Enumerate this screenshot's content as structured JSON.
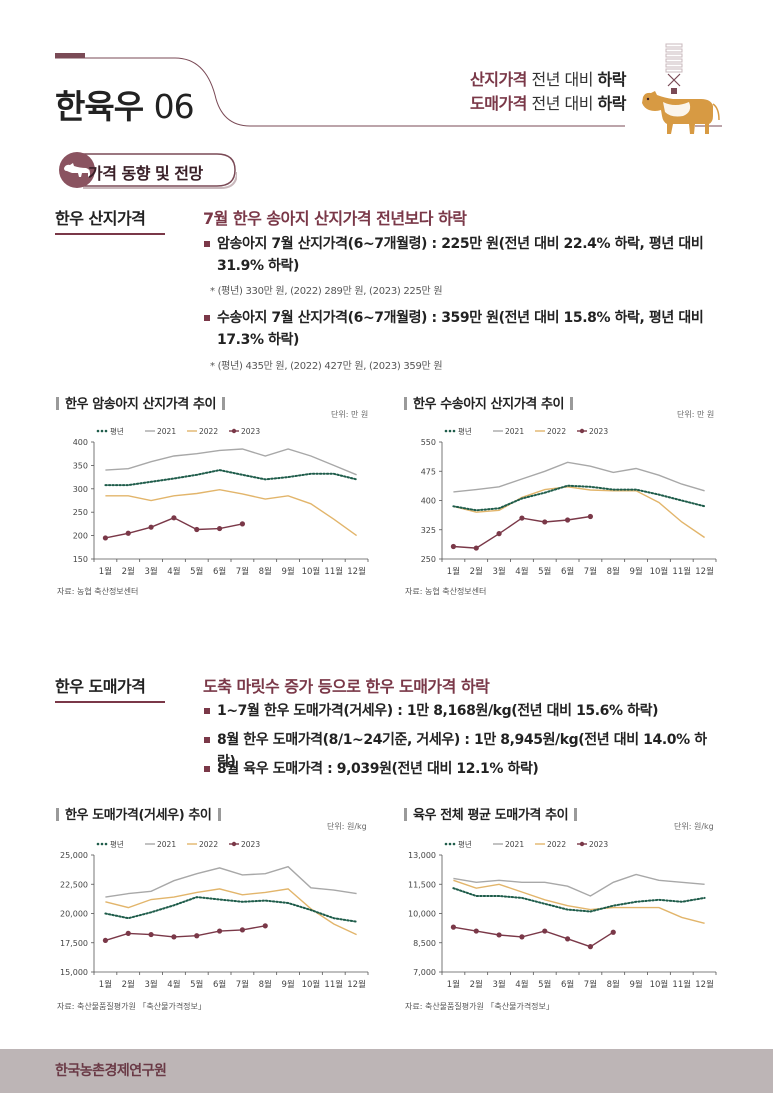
{
  "header": {
    "title_main": "한육우",
    "title_num": "06",
    "line1": {
      "accent": "산지가격",
      "plain": " 전년 대비 ",
      "strong": "하락"
    },
    "line2": {
      "accent": "도매가격",
      "plain": " 전년 대비 ",
      "strong": "하락"
    }
  },
  "badge": {
    "label": "가격 동향 및 전망"
  },
  "section1": {
    "title": "한우 산지가격",
    "headline": "7월 한우 송아지 산지가격 전년보다 하락",
    "bullet1": "암송아지 7월 산지가격(6~7개월령) : 225만 원(전년 대비 22.4% 하락, 평년 대비 31.9% 하락)",
    "note1": "* (평년) 330만 원, (2022) 289만 원, (2023) 225만 원",
    "bullet2": "수송아지 7월 산지가격(6~7개월령) : 359만 원(전년 대비 15.8% 하락, 평년 대비 17.3% 하락)",
    "note2": "* (평년) 435만 원, (2022) 427만 원, (2023) 359만 원"
  },
  "section2": {
    "title": "한우 도매가격",
    "headline": "도축 마릿수 증가 등으로 한우 도매가격 하락",
    "bullet1": "1~7월 한우 도매가격(거세우) : 1만 8,168원/kg(전년 대비 15.6% 하락)",
    "bullet2": "8월 한우 도매가격(8/1~24기준, 거세우) : 1만 8,945원/kg(전년 대비 14.0% 하락)",
    "bullet3": "8월 육우 도매가격 : 9,039원(전년 대비 12.1% 하락)"
  },
  "footer": {
    "label": "한국농촌경제연구원"
  },
  "colors": {
    "avg": "#1e5c4a",
    "y2021": "#a8a8a8",
    "y2022": "#e2b56b",
    "y2023": "#7a3848",
    "accent": "#7a3848"
  },
  "chart_data": [
    {
      "type": "line",
      "title": "한우 암송아지 산지가격 추이",
      "unit": "단위: 만 원",
      "source": "자료: 농협 축산정보센터",
      "categories": [
        "1월",
        "2월",
        "3월",
        "4월",
        "5월",
        "6월",
        "7월",
        "8월",
        "9월",
        "10월",
        "11월",
        "12월"
      ],
      "ylim": [
        150,
        400
      ],
      "yticks": [
        150,
        200,
        250,
        300,
        350,
        400
      ],
      "legend_position": "top-left",
      "series": [
        {
          "name": "평년",
          "values": [
            308,
            308,
            315,
            322,
            330,
            340,
            330,
            320,
            325,
            332,
            332,
            320
          ]
        },
        {
          "name": "2021",
          "values": [
            340,
            343,
            358,
            370,
            375,
            382,
            385,
            370,
            385,
            370,
            350,
            330
          ]
        },
        {
          "name": "2022",
          "values": [
            285,
            285,
            275,
            285,
            290,
            298,
            289,
            278,
            285,
            268,
            235,
            200
          ]
        },
        {
          "name": "2023",
          "values": [
            195,
            205,
            218,
            238,
            213,
            215,
            225,
            null,
            null,
            null,
            null,
            null
          ]
        }
      ]
    },
    {
      "type": "line",
      "title": "한우 수송아지 산지가격 추이",
      "unit": "단위: 만 원",
      "source": "자료: 농협 축산정보센터",
      "categories": [
        "1월",
        "2월",
        "3월",
        "4월",
        "5월",
        "6월",
        "7월",
        "8월",
        "9월",
        "10월",
        "11월",
        "12월"
      ],
      "ylim": [
        250,
        550
      ],
      "yticks": [
        250,
        325,
        400,
        475,
        550
      ],
      "legend_position": "top-left",
      "series": [
        {
          "name": "평년",
          "values": [
            385,
            375,
            380,
            405,
            420,
            438,
            435,
            428,
            428,
            415,
            400,
            385
          ]
        },
        {
          "name": "2021",
          "values": [
            422,
            428,
            435,
            455,
            475,
            498,
            488,
            472,
            482,
            465,
            442,
            425
          ]
        },
        {
          "name": "2022",
          "values": [
            385,
            370,
            375,
            408,
            428,
            435,
            427,
            425,
            425,
            395,
            345,
            305
          ]
        },
        {
          "name": "2023",
          "values": [
            282,
            278,
            315,
            355,
            345,
            350,
            359,
            null,
            null,
            null,
            null,
            null
          ]
        }
      ]
    },
    {
      "type": "line",
      "title": "한우 도매가격(거세우) 추이",
      "unit": "단위: 원/kg",
      "source": "자료: 축산물품질평가원 「축산물가격정보」",
      "categories": [
        "1월",
        "2월",
        "3월",
        "4월",
        "5월",
        "6월",
        "7월",
        "8월",
        "9월",
        "10월",
        "11월",
        "12월"
      ],
      "ylim": [
        15000,
        25000
      ],
      "yticks": [
        15000,
        17500,
        20000,
        22500,
        25000
      ],
      "legend_position": "top-left",
      "series": [
        {
          "name": "평년",
          "values": [
            20000,
            19600,
            20100,
            20700,
            21400,
            21200,
            21000,
            21100,
            20900,
            20300,
            19600,
            19300
          ]
        },
        {
          "name": "2021",
          "values": [
            21400,
            21700,
            21900,
            22800,
            23400,
            23900,
            23300,
            23400,
            24000,
            22200,
            22000,
            21700
          ]
        },
        {
          "name": "2022",
          "values": [
            21000,
            20500,
            21200,
            21400,
            21800,
            22100,
            21600,
            21800,
            22100,
            20400,
            19100,
            18200
          ]
        },
        {
          "name": "2023",
          "values": [
            17700,
            18300,
            18200,
            18000,
            18100,
            18500,
            18600,
            18945,
            null,
            null,
            null,
            null
          ]
        }
      ]
    },
    {
      "type": "line",
      "title": "육우 전체 평균 도매가격 추이",
      "unit": "단위: 원/kg",
      "source": "자료: 축산물품질평가원 「축산물가격정보」",
      "categories": [
        "1월",
        "2월",
        "3월",
        "4월",
        "5월",
        "6월",
        "7월",
        "8월",
        "9월",
        "10월",
        "11월",
        "12월"
      ],
      "ylim": [
        7000,
        13000
      ],
      "yticks": [
        7000,
        8500,
        10000,
        11500,
        13000
      ],
      "legend_position": "top-left",
      "series": [
        {
          "name": "평년",
          "values": [
            11300,
            10900,
            10900,
            10800,
            10500,
            10200,
            10100,
            10400,
            10600,
            10700,
            10600,
            10800
          ]
        },
        {
          "name": "2021",
          "values": [
            11800,
            11600,
            11700,
            11600,
            11600,
            11400,
            10900,
            11600,
            12000,
            11700,
            11600,
            11500
          ]
        },
        {
          "name": "2022",
          "values": [
            11700,
            11300,
            11500,
            11100,
            10700,
            10400,
            10200,
            10300,
            10300,
            10300,
            9800,
            9500
          ]
        },
        {
          "name": "2023",
          "values": [
            9300,
            9100,
            8900,
            8800,
            9100,
            8700,
            8300,
            9039,
            null,
            null,
            null,
            null
          ]
        }
      ]
    }
  ]
}
